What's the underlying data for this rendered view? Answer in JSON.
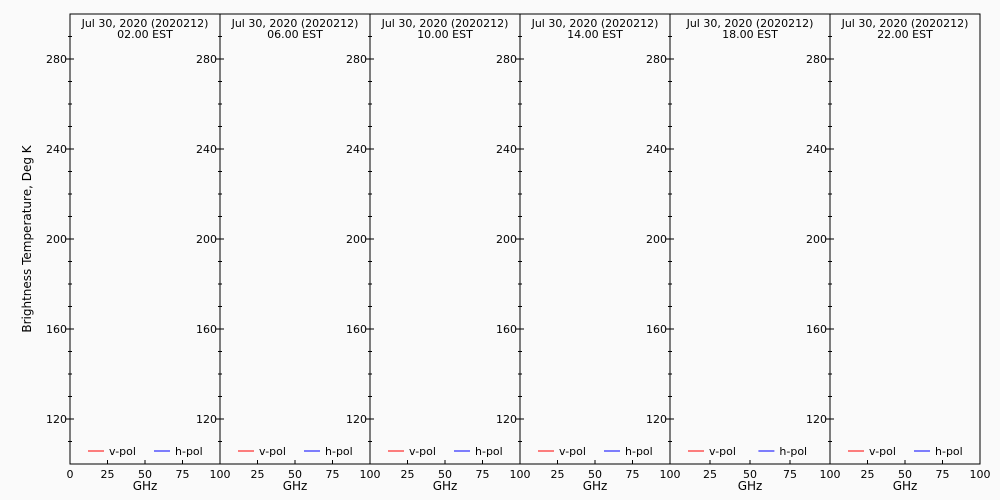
{
  "chart_data": {
    "type": "line",
    "ylabel": "Brightness Temperature, Deg K",
    "ylim": [
      100,
      300
    ],
    "yticks": [
      120,
      160,
      200,
      240,
      280
    ],
    "legend": {
      "placement": "bottom",
      "entries": [
        {
          "name": "v-pol",
          "color": "#ff0000"
        },
        {
          "name": "h-pol",
          "color": "#0000ff"
        }
      ]
    },
    "panels": [
      {
        "title": "Jul 30, 2020 (2020212)",
        "subtitle": "02.00 EST",
        "xlabel": "GHz",
        "xlim": [
          0,
          100
        ],
        "xticks": [
          "0",
          "25",
          "50",
          "75",
          "100"
        ],
        "series": []
      },
      {
        "title": "Jul 30, 2020 (2020212)",
        "subtitle": "06.00 EST",
        "xlabel": "GHz",
        "xlim": [
          0,
          100
        ],
        "xticks": [
          "25",
          "50",
          "75",
          "100"
        ],
        "series": []
      },
      {
        "title": "Jul 30, 2020 (2020212)",
        "subtitle": "10.00 EST",
        "xlabel": "GHz",
        "xlim": [
          0,
          100
        ],
        "xticks": [
          "25",
          "50",
          "75",
          "100"
        ],
        "series": []
      },
      {
        "title": "Jul 30, 2020 (2020212)",
        "subtitle": "14.00 EST",
        "xlabel": "GHz",
        "xlim": [
          0,
          100
        ],
        "xticks": [
          "25",
          "50",
          "75",
          "100"
        ],
        "series": []
      },
      {
        "title": "Jul 30, 2020 (2020212)",
        "subtitle": "18.00 EST",
        "xlabel": "GHz",
        "xlim": [
          0,
          100
        ],
        "xticks": [
          "25",
          "50",
          "75",
          "100"
        ],
        "series": []
      },
      {
        "title": "Jul 30, 2020 (2020212)",
        "subtitle": "22.00 EST",
        "xlabel": "GHz",
        "xlim": [
          0,
          100
        ],
        "xticks": [
          "25",
          "50",
          "75",
          "100"
        ],
        "series": []
      }
    ]
  }
}
